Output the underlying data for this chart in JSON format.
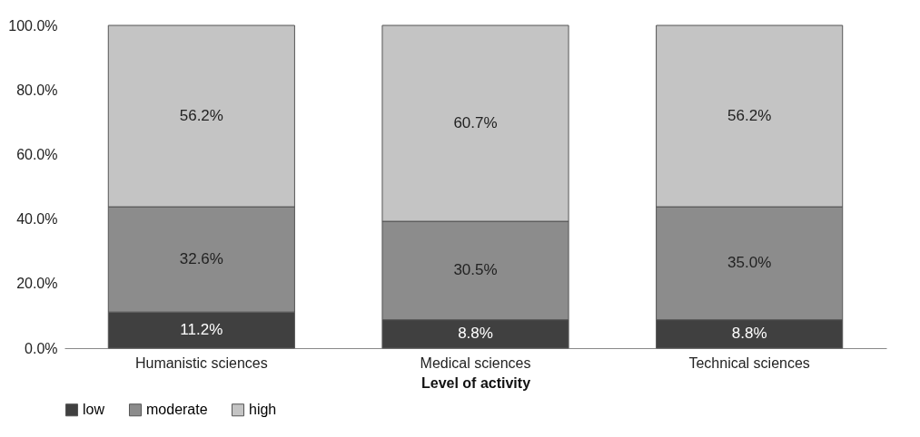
{
  "chart_data": {
    "type": "bar",
    "stacked": true,
    "xlabel": "Level of activity",
    "categories": [
      "Humanistic sciences",
      "Medical sciences",
      "Technical sciences"
    ],
    "series": [
      {
        "name": "low",
        "color": "#404040",
        "values": [
          11.2,
          8.8,
          8.8
        ],
        "value_labels": [
          "11.2%",
          "8.8%",
          "8.8%"
        ]
      },
      {
        "name": "moderate",
        "color": "#8c8c8c",
        "values": [
          32.6,
          30.5,
          35.0
        ],
        "value_labels": [
          "32.6%",
          "30.5%",
          "35.0%"
        ]
      },
      {
        "name": "high",
        "color": "#c4c4c4",
        "values": [
          56.2,
          60.7,
          56.2
        ],
        "value_labels": [
          "56.2%",
          "60.7%",
          "56.2%"
        ]
      }
    ],
    "ylim": [
      0,
      100
    ],
    "yticks": [
      {
        "value": 0,
        "label": "0.0%"
      },
      {
        "value": 20,
        "label": "20.0%"
      },
      {
        "value": 40,
        "label": "40.0%"
      },
      {
        "value": 60,
        "label": "60.0%"
      },
      {
        "value": 80,
        "label": "80.0%"
      },
      {
        "value": 100,
        "label": "100.0%"
      }
    ],
    "grid": false,
    "legend": "bottom"
  }
}
